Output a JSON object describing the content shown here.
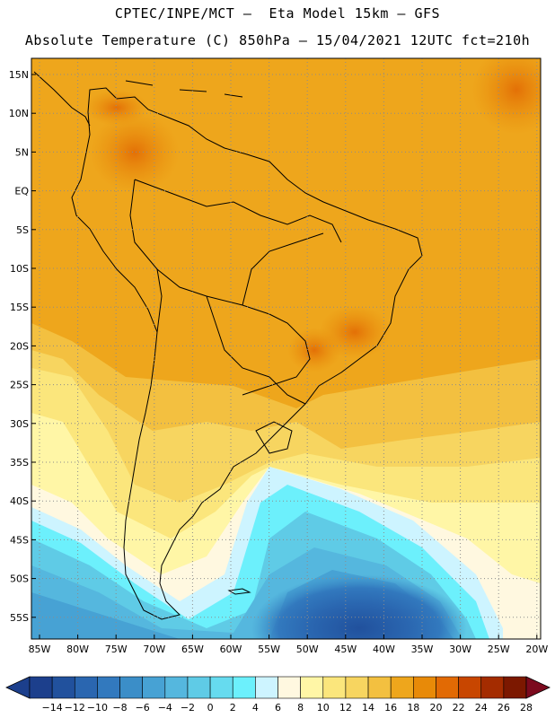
{
  "header": {
    "line1": "CPTEC/INPE/MCT —  Eta Model 15km — GFS",
    "line2": "Absolute Temperature (C) 850hPa — 15/04/2021 12UTC fct=210h"
  },
  "axes": {
    "lat_labels": [
      "15N",
      "10N",
      "5N",
      "EQ",
      "5S",
      "10S",
      "15S",
      "20S",
      "25S",
      "30S",
      "35S",
      "40S",
      "45S",
      "50S",
      "55S"
    ],
    "lon_labels": [
      "85W",
      "80W",
      "75W",
      "70W",
      "65W",
      "60W",
      "55W",
      "50W",
      "45W",
      "40W",
      "35W",
      "30W",
      "25W",
      "20W"
    ]
  },
  "colorbar": {
    "labels": [
      "-14",
      "-12",
      "-10",
      "-8",
      "-6",
      "-4",
      "-2",
      "0",
      "2",
      "4",
      "6",
      "8",
      "10",
      "12",
      "14",
      "16",
      "18",
      "20",
      "22",
      "24",
      "26",
      "28"
    ],
    "colors": [
      "#1c3f8c",
      "#21519d",
      "#2a66b0",
      "#3279be",
      "#3b8ec8",
      "#47a2d4",
      "#55b7de",
      "#5fcbe6",
      "#66dbef",
      "#6cf0fc",
      "#cdf4ff",
      "#fff8e0",
      "#fff6a6",
      "#fbe67c",
      "#f7d560",
      "#f3c040",
      "#eea61c",
      "#e88a08",
      "#e26a04",
      "#c84600",
      "#a42c00",
      "#7c1800"
    ]
  },
  "colors": {
    "frame": "#000000",
    "grid": "#8c8c8c"
  }
}
